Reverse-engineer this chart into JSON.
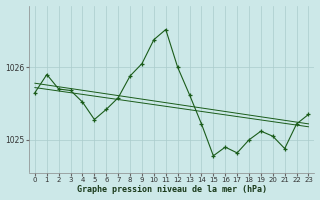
{
  "title": "Graphe pression niveau de la mer (hPa)",
  "bg_color": "#cce8e8",
  "grid_color": "#aacccc",
  "line_color": "#1a5c1a",
  "marker_color": "#1a5c1a",
  "xlim": [
    -0.5,
    23.5
  ],
  "ylim": [
    1024.55,
    1026.85
  ],
  "yticks": [
    1025,
    1026
  ],
  "xticks": [
    0,
    1,
    2,
    3,
    4,
    5,
    6,
    7,
    8,
    9,
    10,
    11,
    12,
    13,
    14,
    15,
    16,
    17,
    18,
    19,
    20,
    21,
    22,
    23
  ],
  "series1": [
    [
      0,
      1025.65
    ],
    [
      1,
      1025.9
    ],
    [
      2,
      1025.7
    ],
    [
      3,
      1025.68
    ],
    [
      4,
      1025.52
    ],
    [
      5,
      1025.28
    ],
    [
      6,
      1025.42
    ],
    [
      7,
      1025.58
    ],
    [
      8,
      1025.88
    ],
    [
      9,
      1026.05
    ],
    [
      10,
      1026.38
    ],
    [
      11,
      1026.52
    ],
    [
      12,
      1026.0
    ],
    [
      13,
      1025.62
    ],
    [
      14,
      1025.22
    ],
    [
      15,
      1024.78
    ],
    [
      16,
      1024.9
    ],
    [
      17,
      1024.82
    ],
    [
      18,
      1025.0
    ],
    [
      19,
      1025.12
    ],
    [
      20,
      1025.05
    ],
    [
      21,
      1024.88
    ],
    [
      22,
      1025.22
    ],
    [
      23,
      1025.35
    ]
  ],
  "trend1_x": [
    0,
    23
  ],
  "trend1_y": [
    1025.72,
    1025.18
  ],
  "trend2_x": [
    0,
    23
  ],
  "trend2_y": [
    1025.78,
    1025.22
  ]
}
